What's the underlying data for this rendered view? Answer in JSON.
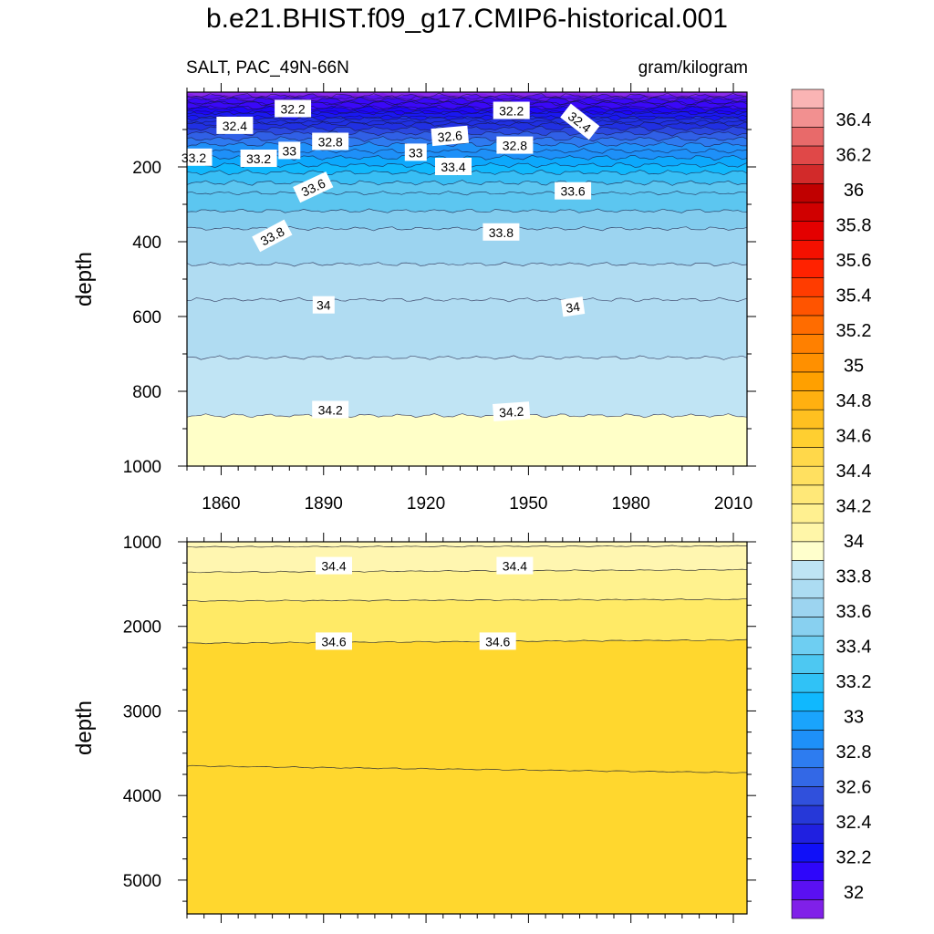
{
  "header": {
    "title": "b.e21.BHIST.f09_g17.CMIP6-historical.001",
    "left_subtitle": "SALT, PAC_49N-66N",
    "right_subtitle": "gram/kilogram"
  },
  "chart_data": [
    {
      "type": "heatmap",
      "panel": "upper",
      "variable": "SALT",
      "region": "PAC_49N-66N",
      "units": "gram/kilogram",
      "xlim": [
        1850,
        2014
      ],
      "xticks": [
        1860,
        1890,
        1920,
        1950,
        1980,
        2010
      ],
      "ylabel": "depth",
      "ylim": [
        0,
        1000
      ],
      "y_reversed": true,
      "yticks": [
        200,
        400,
        600,
        800,
        1000
      ],
      "contours": [
        {
          "level": 32.0,
          "depth": 10
        },
        {
          "level": 32.2,
          "depth": 30
        },
        {
          "level": 32.4,
          "depth": 55
        },
        {
          "level": 32.6,
          "depth": 85
        },
        {
          "level": 32.8,
          "depth": 110
        },
        {
          "level": 33.0,
          "depth": 140
        },
        {
          "level": 33.2,
          "depth": 175
        },
        {
          "level": 33.4,
          "depth": 215
        },
        {
          "level": 33.6,
          "depth": 270
        },
        {
          "level": 33.8,
          "depth": 365
        },
        {
          "level": 34.0,
          "depth": 555
        },
        {
          "level": 34.2,
          "depth": 865
        }
      ],
      "contour_labels": [
        {
          "text": "32.2",
          "year": 1881,
          "depth": 45
        },
        {
          "text": "32.2",
          "year": 1945,
          "depth": 50
        },
        {
          "text": "32.4",
          "year": 1965,
          "depth": 80
        },
        {
          "text": "32.4",
          "year": 1864,
          "depth": 90
        },
        {
          "text": "32.6",
          "year": 1927,
          "depth": 118
        },
        {
          "text": "32.8",
          "year": 1892,
          "depth": 133
        },
        {
          "text": "32.8",
          "year": 1946,
          "depth": 143
        },
        {
          "text": "33",
          "year": 1880,
          "depth": 157
        },
        {
          "text": "33",
          "year": 1917,
          "depth": 162
        },
        {
          "text": "33.2",
          "year": 1852,
          "depth": 175
        },
        {
          "text": "33.2",
          "year": 1871,
          "depth": 178
        },
        {
          "text": "33.4",
          "year": 1928,
          "depth": 200
        },
        {
          "text": "33.6",
          "year": 1887,
          "depth": 255
        },
        {
          "text": "33.6",
          "year": 1963,
          "depth": 265
        },
        {
          "text": "33.8",
          "year": 1875,
          "depth": 385
        },
        {
          "text": "33.8",
          "year": 1942,
          "depth": 375
        },
        {
          "text": "34",
          "year": 1890,
          "depth": 570
        },
        {
          "text": "34",
          "year": 1963,
          "depth": 575
        },
        {
          "text": "34.2",
          "year": 1892,
          "depth": 850
        },
        {
          "text": "34.2",
          "year": 1945,
          "depth": 855
        }
      ]
    },
    {
      "type": "heatmap",
      "panel": "lower",
      "variable": "SALT",
      "units": "gram/kilogram",
      "xlim": [
        1850,
        2014
      ],
      "ylabel": "depth",
      "ylim": [
        1000,
        5400
      ],
      "y_reversed": true,
      "yticks": [
        1000,
        2000,
        3000,
        4000,
        5000
      ],
      "contours": [
        {
          "level": 34.4,
          "depth_start": 1360,
          "depth_end": 1330
        },
        {
          "level": 34.6,
          "depth_start": 2200,
          "depth_end": 2160
        },
        {
          "level": 34.8,
          "depth_start": 3650,
          "depth_end": 3730
        }
      ],
      "contour_labels": [
        {
          "text": "34.4",
          "year": 1893,
          "depth": 1330
        },
        {
          "text": "34.4",
          "year": 1946,
          "depth": 1330
        },
        {
          "text": "34.6",
          "year": 1893,
          "depth": 2180
        },
        {
          "text": "34.6",
          "year": 1941,
          "depth": 2180
        }
      ]
    }
  ],
  "colorbar": {
    "orientation": "vertical",
    "labels": [
      "32",
      "32.2",
      "32.4",
      "32.6",
      "32.8",
      "33",
      "33.2",
      "33.4",
      "33.6",
      "33.8",
      "34",
      "34.2",
      "34.4",
      "34.6",
      "34.8",
      "35",
      "35.2",
      "35.4",
      "35.6",
      "35.8",
      "36",
      "36.2",
      "36.4"
    ],
    "colors": [
      "#8020E8",
      "#5A10F2",
      "#2E06FA",
      "#1010F8",
      "#2020E0",
      "#2638D8",
      "#3050DC",
      "#3368E6",
      "#2D7CF0",
      "#1E90F8",
      "#1AA4FC",
      "#10B8FE",
      "#30C2F6",
      "#4DC8F2",
      "#6ECEF2",
      "#88D0F0",
      "#9CD4F0",
      "#ACDCF2",
      "#BEE4F4",
      "#FFFFCC",
      "#FFF6A8",
      "#FFF090",
      "#FFE878",
      "#FFE060",
      "#FFD84A",
      "#FFCF30",
      "#FFC020",
      "#FFB010",
      "#FFA000",
      "#FF9000",
      "#FF8000",
      "#FF6C00",
      "#FF5400",
      "#FF3C00",
      "#FF2200",
      "#F41000",
      "#E40000",
      "#D00000",
      "#C00000",
      "#D22A2A",
      "#E04848",
      "#E86A6A",
      "#F29090",
      "#FAB4B4"
    ],
    "fill_colors": {
      "upper_shallow": [
        "#7E1CE6",
        "#5A10F0",
        "#3A08F8",
        "#1E06F8",
        "#1A18F0",
        "#2030E2",
        "#2A48E0",
        "#3060E6",
        "#2E7AF0",
        "#1E90F8",
        "#0CA8FC",
        "#10B8FC",
        "#38BEF4",
        "#5CC6F0",
        "#82CCEE",
        "#9CD4F0",
        "#B0DCF2",
        "#C0E4F4",
        "#FFFFC8"
      ],
      "lower": [
        "#FFF8B8",
        "#FFF28E",
        "#FFEA66",
        "#FFD72E"
      ]
    }
  }
}
